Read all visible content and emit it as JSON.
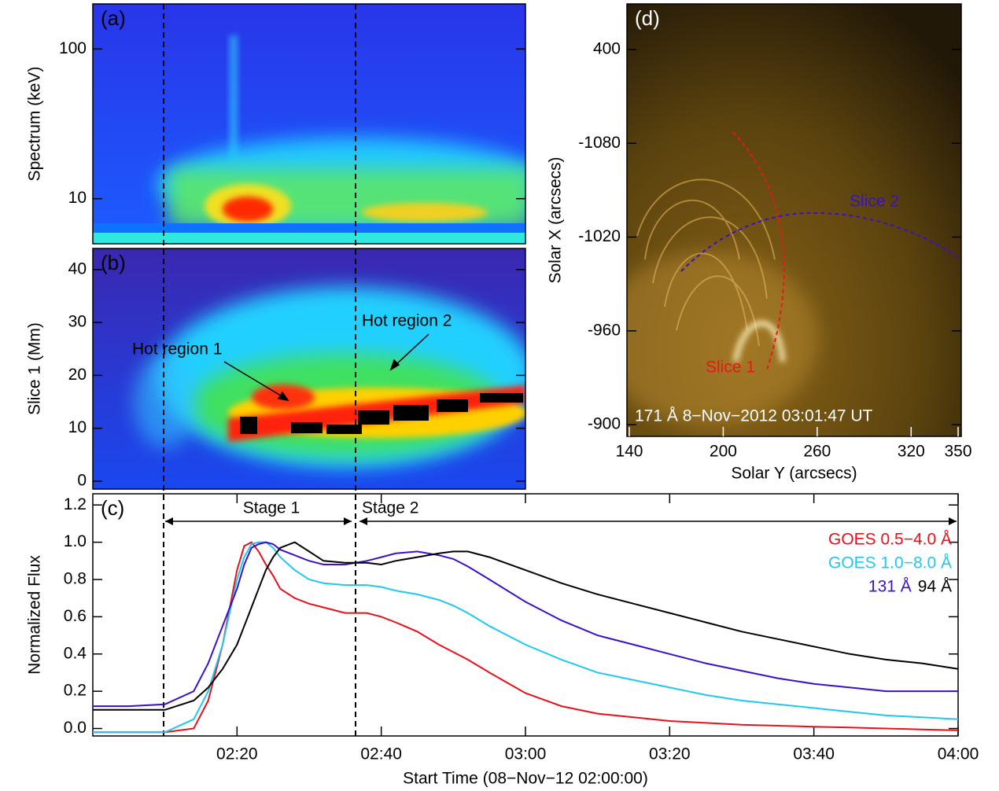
{
  "chart_data": [
    {
      "type": "heatmap",
      "label": "(a)",
      "ylabel": "Spectrum (keV)",
      "ylim": [
        5,
        200
      ],
      "yticks": [
        10,
        100
      ],
      "log_y": true
    },
    {
      "type": "heatmap",
      "label": "(b)",
      "ylabel": "Slice 1 (Mm)",
      "ylim": [
        -1.5,
        44
      ],
      "yticks": [
        0,
        10,
        20,
        30,
        40
      ],
      "annotations": [
        "Hot region 1",
        "Hot region 2"
      ]
    },
    {
      "type": "line",
      "label": "(c)",
      "xlabel": "Start Time (08−Nov−12 02:00:00)",
      "ylabel": "Normalized Flux",
      "x": [
        0,
        5,
        10,
        14,
        16,
        18,
        20,
        21,
        22,
        23,
        24,
        25,
        26,
        28,
        30,
        32,
        35,
        38,
        40,
        42,
        45,
        48,
        50,
        52,
        55,
        60,
        65,
        70,
        75,
        80,
        85,
        90,
        95,
        100,
        105,
        110,
        115,
        120
      ],
      "xlim": [
        0,
        120
      ],
      "xticks": [
        {
          "value": 20,
          "label": "02:20"
        },
        {
          "value": 40,
          "label": "02:40"
        },
        {
          "value": 60,
          "label": "03:00"
        },
        {
          "value": 80,
          "label": "03:20"
        },
        {
          "value": 100,
          "label": "03:40"
        },
        {
          "value": 120,
          "label": "04:00"
        }
      ],
      "ylim": [
        -0.04,
        1.26
      ],
      "yticks": [
        {
          "value": 0,
          "label": "0.0"
        },
        0.2,
        0.4,
        0.6,
        0.8,
        {
          "value": 1,
          "label": "1.0"
        },
        1.2
      ],
      "series": [
        {
          "name": "GOES 0.5−4.0 Å",
          "color": "#e8101a",
          "values": [
            -0.02,
            -0.02,
            -0.02,
            0.0,
            0.15,
            0.45,
            0.85,
            0.98,
            1.0,
            0.95,
            0.88,
            0.82,
            0.75,
            0.7,
            0.67,
            0.65,
            0.62,
            0.62,
            0.6,
            0.57,
            0.52,
            0.45,
            0.41,
            0.37,
            0.3,
            0.19,
            0.12,
            0.08,
            0.06,
            0.04,
            0.03,
            0.02,
            0.015,
            0.01,
            0.005,
            0.0,
            -0.005,
            -0.01
          ]
        },
        {
          "name": "GOES 1.0−8.0 Å",
          "color": "#1ec8f0",
          "values": [
            -0.02,
            -0.02,
            -0.02,
            0.05,
            0.2,
            0.45,
            0.8,
            0.92,
            0.99,
            1.0,
            1.0,
            0.97,
            0.92,
            0.85,
            0.8,
            0.78,
            0.77,
            0.77,
            0.76,
            0.74,
            0.72,
            0.69,
            0.66,
            0.62,
            0.55,
            0.45,
            0.37,
            0.3,
            0.26,
            0.22,
            0.18,
            0.15,
            0.13,
            0.11,
            0.09,
            0.07,
            0.06,
            0.05
          ]
        },
        {
          "name": "131 Å",
          "color": "#3a10c8",
          "values": [
            0.12,
            0.12,
            0.13,
            0.2,
            0.35,
            0.55,
            0.75,
            0.88,
            0.97,
            0.99,
            1.0,
            0.99,
            0.96,
            0.93,
            0.9,
            0.88,
            0.88,
            0.9,
            0.92,
            0.94,
            0.95,
            0.93,
            0.91,
            0.87,
            0.8,
            0.68,
            0.58,
            0.5,
            0.45,
            0.4,
            0.35,
            0.31,
            0.27,
            0.24,
            0.22,
            0.2,
            0.2,
            0.2
          ]
        },
        {
          "name": "94 Å",
          "color": "#000000",
          "values": [
            0.1,
            0.1,
            0.1,
            0.15,
            0.22,
            0.32,
            0.45,
            0.55,
            0.65,
            0.75,
            0.85,
            0.92,
            0.97,
            1.0,
            0.95,
            0.9,
            0.89,
            0.89,
            0.88,
            0.9,
            0.92,
            0.94,
            0.95,
            0.95,
            0.92,
            0.85,
            0.78,
            0.72,
            0.67,
            0.62,
            0.57,
            0.52,
            0.48,
            0.44,
            0.4,
            0.37,
            0.35,
            0.32
          ]
        }
      ],
      "annotations": [
        "Stage 1",
        "Stage 2"
      ]
    },
    {
      "type": "image",
      "label": "(d)",
      "xlabel": "Solar Y (arcsecs)",
      "ylabel": "Solar X (arcsecs)",
      "xlim": [
        138.5,
        352
      ],
      "xticks": [
        140,
        200,
        260,
        320,
        350
      ],
      "yticks": [
        400,
        -1080,
        -1020,
        -960,
        -900
      ],
      "annotations": [
        "Slice 1",
        "Slice 2",
        "171 Å 8−Nov−2012 03:01:47 UT"
      ]
    }
  ]
}
